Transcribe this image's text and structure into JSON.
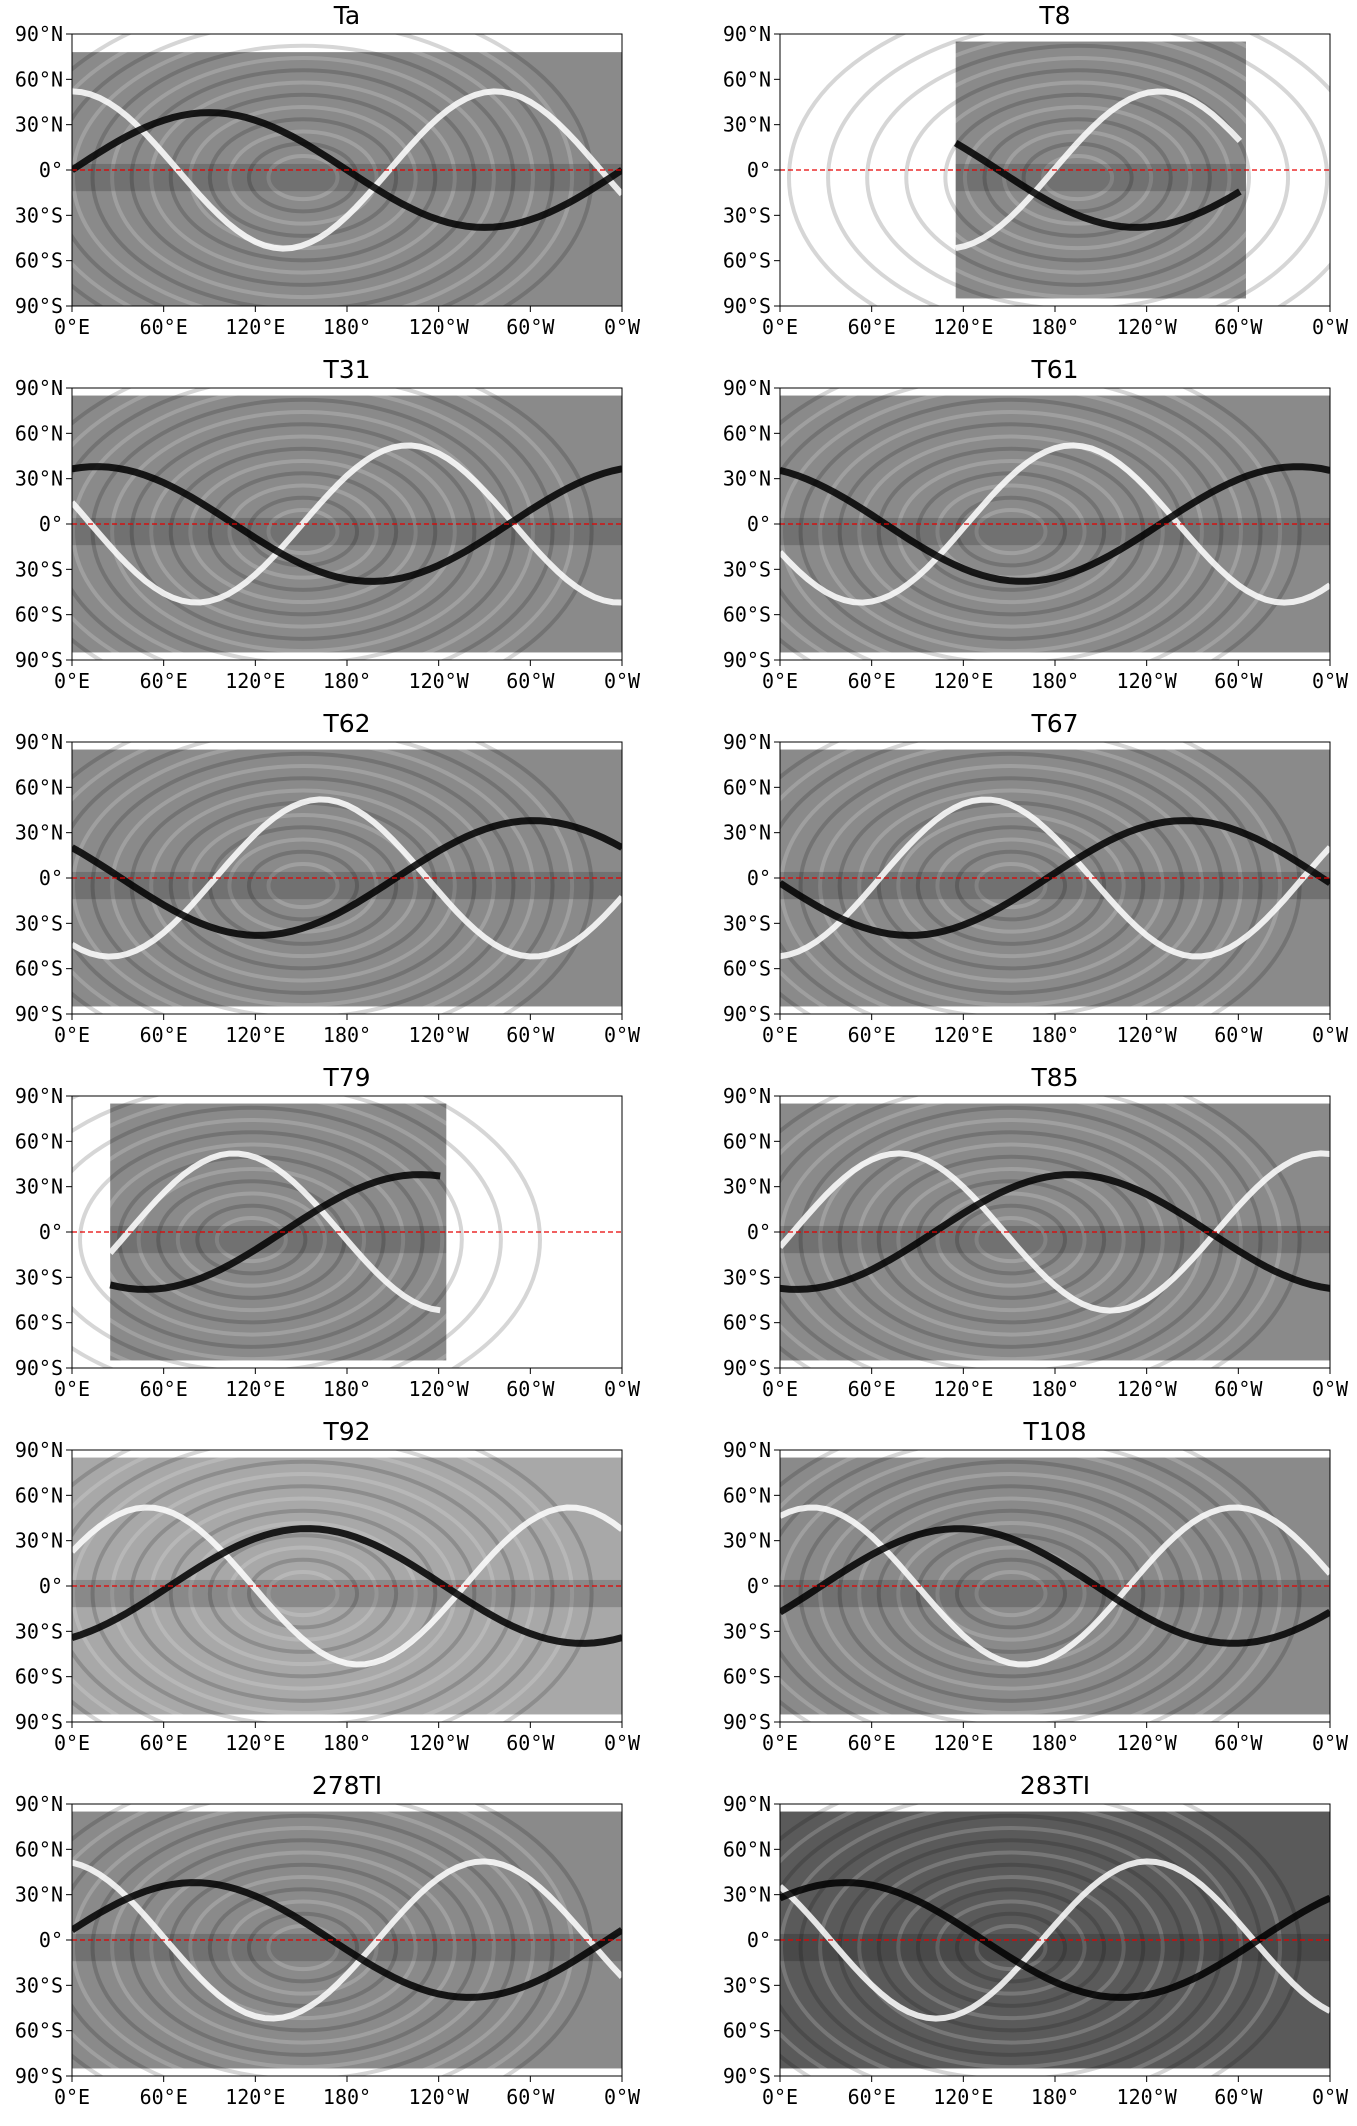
{
  "figure": {
    "lat_ticks": [
      "90°N",
      "60°N",
      "30°N",
      "0°",
      "30°S",
      "60°S",
      "90°S"
    ],
    "lon_ticks": [
      "0°E",
      "60°E",
      "120°E",
      "180°",
      "120°W",
      "60°W",
      "0°W"
    ],
    "equator_line_color": "#e60000",
    "colormap": "grayscale"
  },
  "panels": [
    {
      "title": "Ta",
      "background": "#8a8a8a",
      "coverage": {
        "lon": [
          0,
          360
        ],
        "lat": [
          -90,
          78
        ]
      }
    },
    {
      "title": "T8",
      "background": "#8a8a8a",
      "coverage": {
        "lon": [
          115,
          305
        ],
        "lat": [
          -85,
          85
        ]
      }
    },
    {
      "title": "T31",
      "background": "#8a8a8a",
      "coverage": {
        "lon": [
          0,
          360
        ],
        "lat": [
          -85,
          85
        ]
      }
    },
    {
      "title": "T61",
      "background": "#8a8a8a",
      "coverage": {
        "lon": [
          0,
          360
        ],
        "lat": [
          -85,
          85
        ]
      }
    },
    {
      "title": "T62",
      "background": "#8a8a8a",
      "coverage": {
        "lon": [
          0,
          360
        ],
        "lat": [
          -85,
          85
        ]
      }
    },
    {
      "title": "T67",
      "background": "#8a8a8a",
      "coverage": {
        "lon": [
          0,
          360
        ],
        "lat": [
          -85,
          85
        ]
      }
    },
    {
      "title": "T79",
      "background": "#8a8a8a",
      "coverage": {
        "lon": [
          25,
          245
        ],
        "lat": [
          -85,
          85
        ]
      }
    },
    {
      "title": "T85",
      "background": "#8a8a8a",
      "coverage": {
        "lon": [
          0,
          360
        ],
        "lat": [
          -85,
          85
        ]
      }
    },
    {
      "title": "T92",
      "background": "#a8a8a8",
      "coverage": {
        "lon": [
          0,
          360
        ],
        "lat": [
          -85,
          85
        ]
      }
    },
    {
      "title": "T108",
      "background": "#8a8a8a",
      "coverage": {
        "lon": [
          0,
          360
        ],
        "lat": [
          -85,
          85
        ]
      }
    },
    {
      "title": "278TI",
      "background": "#8a8a8a",
      "coverage": {
        "lon": [
          0,
          360
        ],
        "lat": [
          -85,
          85
        ]
      }
    },
    {
      "title": "283TI",
      "background": "#5a5a5a",
      "coverage": {
        "lon": [
          0,
          360
        ],
        "lat": [
          -85,
          85
        ]
      }
    }
  ]
}
